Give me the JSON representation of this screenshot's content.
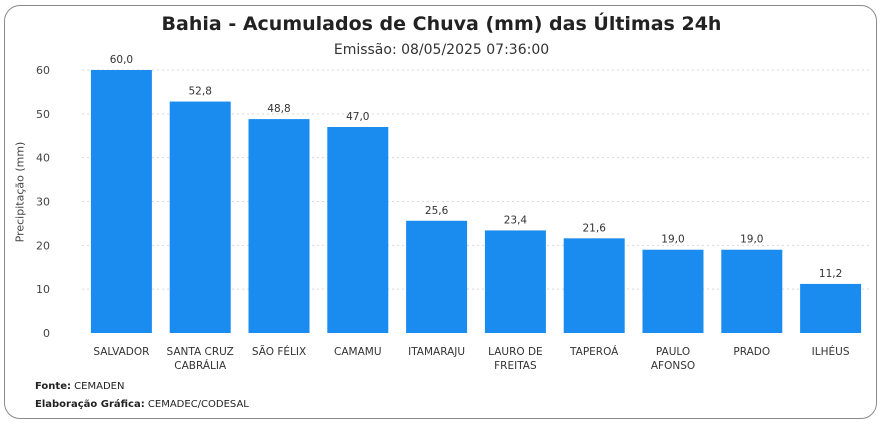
{
  "chart_data": {
    "type": "bar",
    "title": "Bahia - Acumulados de Chuva (mm) das Últimas 24h",
    "subtitle": "Emissão: 08/05/2025 07:36:00",
    "xlabel": "",
    "ylabel": "Precipitação (mm)",
    "ylim": [
      0,
      60
    ],
    "yticks": [
      0,
      10,
      20,
      30,
      40,
      50,
      60
    ],
    "grid": true,
    "categories": [
      [
        "SALVADOR"
      ],
      [
        "SANTA CRUZ",
        "CABRÁLIA"
      ],
      [
        "SÃO FÉLIX"
      ],
      [
        "CAMAMU"
      ],
      [
        "ITAMARAJU"
      ],
      [
        "LAURO DE",
        "FREITAS"
      ],
      [
        "TAPEROÁ"
      ],
      [
        "PAULO",
        "AFONSO"
      ],
      [
        "PRADO"
      ],
      [
        "ILHÉUS"
      ]
    ],
    "values": [
      60.0,
      52.8,
      48.8,
      47.0,
      25.6,
      23.4,
      21.6,
      19.0,
      19.0,
      11.2
    ],
    "value_labels": [
      "60,0",
      "52,8",
      "48,8",
      "47,0",
      "25,6",
      "23,4",
      "21,6",
      "19,0",
      "19,0",
      "11,2"
    ],
    "bar_color": "#1a8cf0"
  },
  "footer": {
    "source_label": "Fonte:",
    "source_value": "CEMADEN",
    "credit_label": "Elaboração Gráfica:",
    "credit_value": "CEMADEC/CODESAL"
  }
}
